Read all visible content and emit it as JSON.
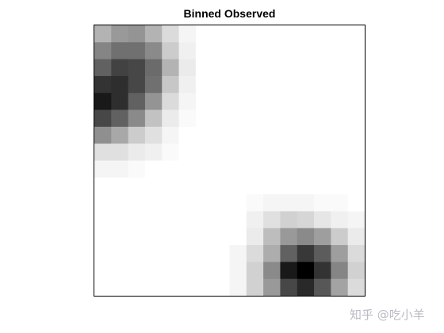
{
  "title": "Binned Observed",
  "watermark": "知乎 @吃小羊",
  "chart_data": {
    "type": "heatmap",
    "title": "Binned Observed",
    "xlabel": "",
    "ylabel": "",
    "colormap": "gray-reversed",
    "grid": false,
    "n_rows": 16,
    "n_cols": 16,
    "values": [
      [
        0.3,
        0.4,
        0.42,
        0.3,
        0.14,
        0.04,
        0,
        0,
        0,
        0,
        0,
        0,
        0,
        0,
        0,
        0
      ],
      [
        0.48,
        0.56,
        0.56,
        0.46,
        0.2,
        0.06,
        0,
        0,
        0,
        0,
        0,
        0,
        0,
        0,
        0,
        0
      ],
      [
        0.62,
        0.74,
        0.72,
        0.58,
        0.3,
        0.08,
        0,
        0,
        0,
        0,
        0,
        0,
        0,
        0,
        0,
        0
      ],
      [
        0.8,
        0.82,
        0.72,
        0.56,
        0.22,
        0.06,
        0,
        0,
        0,
        0,
        0,
        0,
        0,
        0,
        0,
        0
      ],
      [
        0.9,
        0.82,
        0.62,
        0.42,
        0.14,
        0.04,
        0,
        0,
        0,
        0,
        0,
        0,
        0,
        0,
        0,
        0
      ],
      [
        0.72,
        0.62,
        0.46,
        0.24,
        0.08,
        0.02,
        0,
        0,
        0,
        0,
        0,
        0,
        0,
        0,
        0,
        0
      ],
      [
        0.44,
        0.34,
        0.2,
        0.12,
        0.04,
        0,
        0,
        0,
        0,
        0,
        0,
        0,
        0,
        0,
        0,
        0
      ],
      [
        0.12,
        0.12,
        0.08,
        0.06,
        0.02,
        0,
        0,
        0,
        0,
        0,
        0,
        0,
        0,
        0,
        0,
        0
      ],
      [
        0.04,
        0.04,
        0.02,
        0,
        0,
        0,
        0,
        0,
        0,
        0,
        0,
        0,
        0,
        0,
        0,
        0
      ],
      [
        0,
        0,
        0,
        0,
        0,
        0,
        0,
        0,
        0,
        0,
        0,
        0,
        0,
        0,
        0,
        0
      ],
      [
        0,
        0,
        0,
        0,
        0,
        0,
        0,
        0,
        0,
        0.02,
        0.04,
        0.04,
        0.04,
        0.02,
        0.02,
        0
      ],
      [
        0,
        0,
        0,
        0,
        0,
        0,
        0,
        0,
        0,
        0.06,
        0.12,
        0.18,
        0.16,
        0.1,
        0.06,
        0.04
      ],
      [
        0,
        0,
        0,
        0,
        0,
        0,
        0,
        0,
        0,
        0.08,
        0.26,
        0.4,
        0.46,
        0.38,
        0.2,
        0.08
      ],
      [
        0,
        0,
        0,
        0,
        0,
        0,
        0,
        0,
        0.04,
        0.14,
        0.32,
        0.62,
        0.78,
        0.64,
        0.38,
        0.14
      ],
      [
        0,
        0,
        0,
        0,
        0,
        0,
        0,
        0,
        0.04,
        0.18,
        0.46,
        0.9,
        1.0,
        0.8,
        0.48,
        0.18
      ],
      [
        0,
        0,
        0,
        0,
        0,
        0,
        0,
        0,
        0.04,
        0.18,
        0.4,
        0.72,
        0.84,
        0.66,
        0.36,
        0.14
      ]
    ]
  }
}
